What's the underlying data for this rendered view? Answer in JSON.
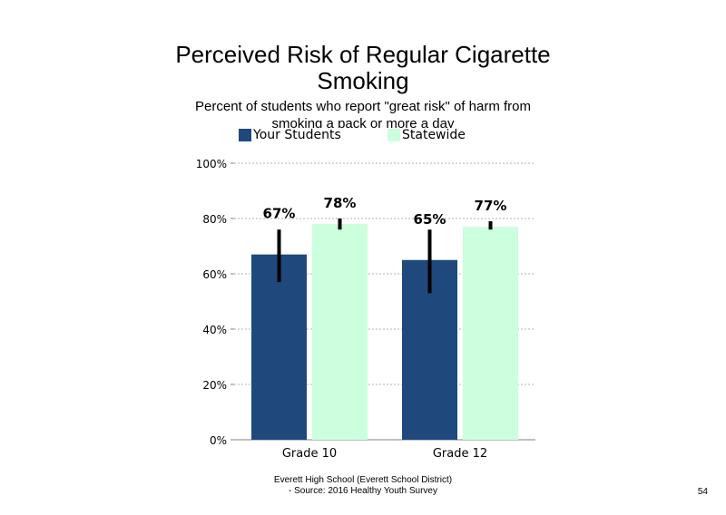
{
  "chart_data": {
    "type": "bar",
    "title": "Perceived Risk of Regular Cigarette\nSmoking",
    "subtitle": "Percent of students who report \"great risk\" of harm from smoking a pack or more a day",
    "categories": [
      "Grade 10",
      "Grade 12"
    ],
    "series": [
      {
        "name": "Your Students",
        "values": [
          67,
          65
        ],
        "labels": [
          "67%",
          "65%"
        ],
        "error_low": [
          57,
          53
        ],
        "error_high": [
          76,
          76
        ],
        "color": "#1f497d"
      },
      {
        "name": "Statewide",
        "values": [
          78,
          77
        ],
        "labels": [
          "78%",
          "77%"
        ],
        "error_low": [
          76,
          76
        ],
        "error_high": [
          80,
          79
        ],
        "color": "#ccffdd"
      }
    ],
    "ylim": [
      0,
      100
    ],
    "yticks": [
      0,
      20,
      40,
      60,
      80,
      100
    ],
    "ytick_labels": [
      "0%",
      "20%",
      "40%",
      "60%",
      "80%",
      "100%"
    ],
    "grid": true,
    "legend_position": "top"
  },
  "footer": {
    "line1": "Everett High School (Everett School District)",
    "line2": "- Source: 2016 Healthy Youth Survey"
  },
  "page_number": "54"
}
